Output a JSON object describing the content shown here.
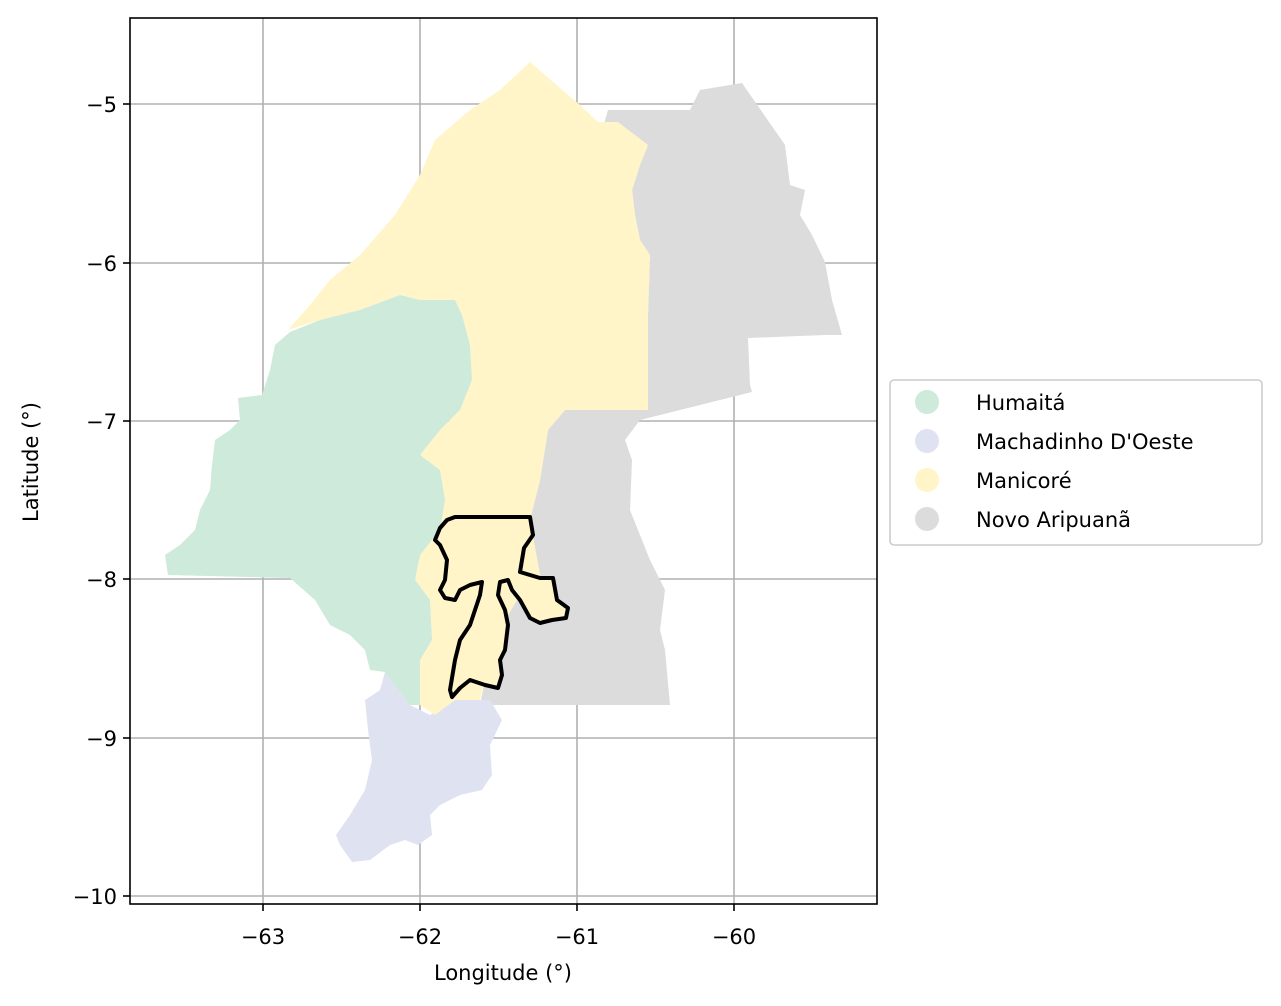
{
  "chart_data": {
    "type": "map",
    "xlabel": "Longitude (°)",
    "ylabel": "Latitude (°)",
    "xlim": [
      -63.85,
      -58.9
    ],
    "ylim": [
      -10.05,
      -4.45
    ],
    "x_ticks": [
      -63,
      -62,
      -61,
      -60
    ],
    "y_ticks": [
      -5,
      -6,
      -7,
      -8,
      -9,
      -10
    ],
    "x_tick_labels": [
      "−63",
      "−62",
      "−61",
      "−60"
    ],
    "y_tick_labels": [
      "−5",
      "−6",
      "−7",
      "−8",
      "−9",
      "−10"
    ],
    "grid": true,
    "legend_position": "right",
    "regions": [
      {
        "name": "Humaitá",
        "color": "#cdeadb"
      },
      {
        "name": "Machadinho D'Oeste",
        "color": "#dfe3f1"
      },
      {
        "name": "Manicoré",
        "color": "#fff5c8"
      },
      {
        "name": "Novo Aripuanã",
        "color": "#dcdcdc"
      }
    ],
    "highlight": {
      "outline_color": "#000000",
      "fill_color": "#fff5c8"
    }
  }
}
